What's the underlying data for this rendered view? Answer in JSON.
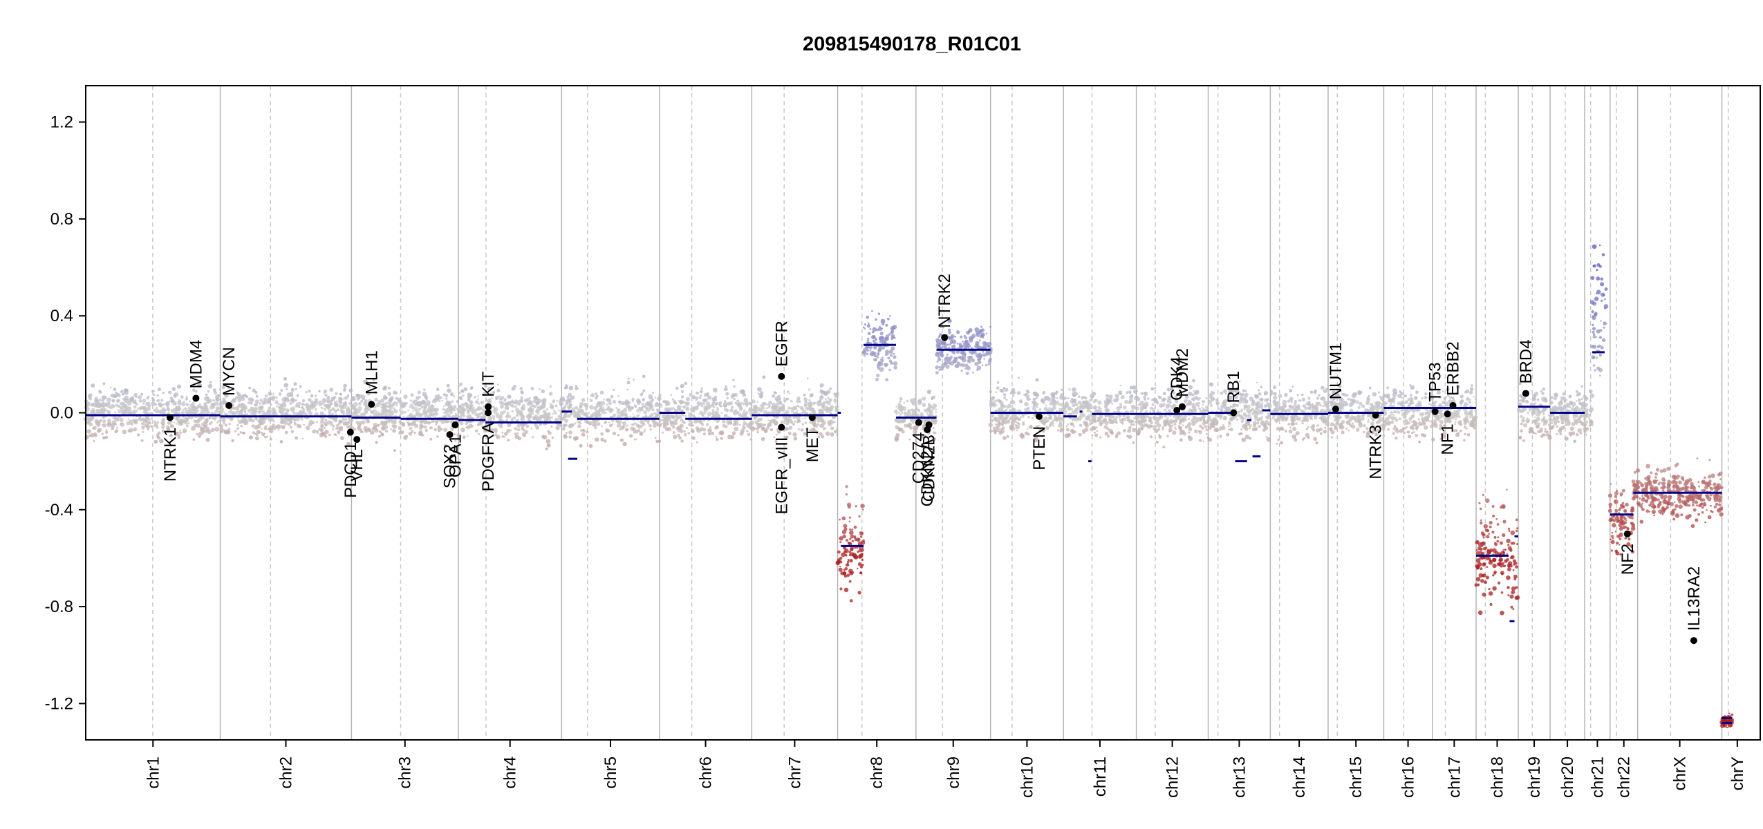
{
  "chart_data": {
    "type": "scatter",
    "title": "209815490178_R01C01",
    "xlabel": "",
    "ylabel": "",
    "ylim": [
      -1.35,
      1.35
    ],
    "yticks": [
      {
        "value": 1.2,
        "label": "1.2"
      },
      {
        "value": 0.8,
        "label": "0.8"
      },
      {
        "value": 0.4,
        "label": "0.4"
      },
      {
        "value": 0.0,
        "label": "0.0"
      },
      {
        "value": -0.4,
        "label": "-0.4"
      },
      {
        "value": -0.8,
        "label": "-0.8"
      },
      {
        "value": -1.2,
        "label": "-1.2"
      }
    ],
    "xlim": [
      0,
      3100
    ],
    "chromosomes": [
      {
        "name": "chr1",
        "start": 0,
        "end": 249,
        "centromere": 124
      },
      {
        "name": "chr2",
        "start": 249,
        "end": 492,
        "centromere": 342
      },
      {
        "name": "chr3",
        "start": 492,
        "end": 690,
        "centromere": 583
      },
      {
        "name": "chr4",
        "start": 690,
        "end": 881,
        "centromere": 741
      },
      {
        "name": "chr5",
        "start": 881,
        "end": 1062,
        "centromere": 929
      },
      {
        "name": "chr6",
        "start": 1062,
        "end": 1233,
        "centromere": 1122
      },
      {
        "name": "chr7",
        "start": 1233,
        "end": 1392,
        "centromere": 1293
      },
      {
        "name": "chr8",
        "start": 1392,
        "end": 1537,
        "centromere": 1437
      },
      {
        "name": "chr9",
        "start": 1537,
        "end": 1675,
        "centromere": 1586
      },
      {
        "name": "chr10",
        "start": 1675,
        "end": 1810,
        "centromere": 1715
      },
      {
        "name": "chr11",
        "start": 1810,
        "end": 1945,
        "centromere": 1863
      },
      {
        "name": "chr12",
        "start": 1945,
        "end": 2078,
        "centromere": 1980
      },
      {
        "name": "chr13",
        "start": 2078,
        "end": 2193,
        "centromere": 2096
      },
      {
        "name": "chr14",
        "start": 2193,
        "end": 2300,
        "centromere": 2210
      },
      {
        "name": "chr15",
        "start": 2300,
        "end": 2403,
        "centromere": 2317
      },
      {
        "name": "chr16",
        "start": 2403,
        "end": 2493,
        "centromere": 2440
      },
      {
        "name": "chr17",
        "start": 2493,
        "end": 2574,
        "centromere": 2517
      },
      {
        "name": "chr18",
        "start": 2574,
        "end": 2652,
        "centromere": 2591
      },
      {
        "name": "chr19",
        "start": 2652,
        "end": 2711,
        "centromere": 2678
      },
      {
        "name": "chr20",
        "start": 2711,
        "end": 2775,
        "centromere": 2739
      },
      {
        "name": "chr21",
        "start": 2775,
        "end": 2822,
        "centromere": 2786
      },
      {
        "name": "chr22",
        "start": 2822,
        "end": 2873,
        "centromere": 2834
      },
      {
        "name": "chrX",
        "start": 2873,
        "end": 3029,
        "centromere": 2934
      },
      {
        "name": "chrY",
        "start": 3029,
        "end": 3086,
        "centromere": 3041
      }
    ],
    "segments": [
      {
        "start": 0,
        "end": 249,
        "value": -0.01
      },
      {
        "start": 249,
        "end": 492,
        "value": -0.015
      },
      {
        "start": 492,
        "end": 583,
        "value": -0.02
      },
      {
        "start": 583,
        "end": 690,
        "value": -0.025
      },
      {
        "start": 690,
        "end": 740,
        "value": -0.03
      },
      {
        "start": 740,
        "end": 881,
        "value": -0.04
      },
      {
        "start": 881,
        "end": 900,
        "value": 0.005
      },
      {
        "start": 893,
        "end": 910,
        "value": -0.19
      },
      {
        "start": 910,
        "end": 1062,
        "value": -0.025
      },
      {
        "start": 1062,
        "end": 1110,
        "value": 0.0
      },
      {
        "start": 1110,
        "end": 1233,
        "value": -0.025
      },
      {
        "start": 1233,
        "end": 1392,
        "value": -0.01
      },
      {
        "start": 1392,
        "end": 1398,
        "value": 0.0
      },
      {
        "start": 1398,
        "end": 1440,
        "value": -0.55
      },
      {
        "start": 1440,
        "end": 1500,
        "value": 0.28
      },
      {
        "start": 1500,
        "end": 1537,
        "value": -0.02
      },
      {
        "start": 1537,
        "end": 1575,
        "value": -0.02
      },
      {
        "start": 1575,
        "end": 1675,
        "value": 0.26
      },
      {
        "start": 1675,
        "end": 1810,
        "value": 0.0
      },
      {
        "start": 1810,
        "end": 1835,
        "value": -0.015
      },
      {
        "start": 1840,
        "end": 1845,
        "value": 0.005
      },
      {
        "start": 1856,
        "end": 1862,
        "value": -0.2
      },
      {
        "start": 1863,
        "end": 1945,
        "value": -0.005
      },
      {
        "start": 1945,
        "end": 2078,
        "value": -0.005
      },
      {
        "start": 2078,
        "end": 2128,
        "value": 0.0
      },
      {
        "start": 2128,
        "end": 2150,
        "value": -0.2
      },
      {
        "start": 2150,
        "end": 2158,
        "value": -0.03
      },
      {
        "start": 2160,
        "end": 2175,
        "value": -0.18
      },
      {
        "start": 2178,
        "end": 2193,
        "value": 0.01
      },
      {
        "start": 2193,
        "end": 2300,
        "value": -0.005
      },
      {
        "start": 2300,
        "end": 2403,
        "value": 0.0
      },
      {
        "start": 2403,
        "end": 2493,
        "value": 0.02
      },
      {
        "start": 2493,
        "end": 2574,
        "value": 0.02
      },
      {
        "start": 2574,
        "end": 2634,
        "value": -0.59
      },
      {
        "start": 2636,
        "end": 2645,
        "value": -0.86
      },
      {
        "start": 2645,
        "end": 2652,
        "value": -0.51
      },
      {
        "start": 2652,
        "end": 2711,
        "value": 0.025
      },
      {
        "start": 2711,
        "end": 2775,
        "value": 0.0
      },
      {
        "start": 2789,
        "end": 2812,
        "value": 0.25
      },
      {
        "start": 2822,
        "end": 2865,
        "value": -0.42
      },
      {
        "start": 2865,
        "end": 3029,
        "value": -0.33
      },
      {
        "start": 3029,
        "end": 3048,
        "value": -1.26
      },
      {
        "start": 3029,
        "end": 3048,
        "value": -1.28
      }
    ],
    "density_regions": [
      {
        "start": 0,
        "end": 1392,
        "center": 0.0,
        "spread": 0.1
      },
      {
        "start": 1392,
        "end": 1440,
        "center": -0.55,
        "spread": 0.2
      },
      {
        "start": 1440,
        "end": 1500,
        "center": 0.28,
        "spread": 0.12
      },
      {
        "start": 1500,
        "end": 1575,
        "center": -0.02,
        "spread": 0.08
      },
      {
        "start": 1575,
        "end": 1675,
        "center": 0.26,
        "spread": 0.09
      },
      {
        "start": 1675,
        "end": 2574,
        "center": 0.0,
        "spread": 0.1
      },
      {
        "start": 2574,
        "end": 2652,
        "center": -0.59,
        "spread": 0.2
      },
      {
        "start": 2652,
        "end": 2789,
        "center": 0.0,
        "spread": 0.1
      },
      {
        "start": 2789,
        "end": 2815,
        "center": 0.4,
        "spread": 0.25
      },
      {
        "start": 2822,
        "end": 2865,
        "center": -0.45,
        "spread": 0.15
      },
      {
        "start": 2865,
        "end": 3029,
        "center": -0.33,
        "spread": 0.1
      },
      {
        "start": 3029,
        "end": 3048,
        "center": -1.27,
        "spread": 0.03
      }
    ],
    "genes": [
      {
        "name": "NTRK1",
        "pos": 156,
        "value": -0.02,
        "label_side": "below"
      },
      {
        "name": "MDM4",
        "pos": 204,
        "value": 0.06,
        "label_side": "above"
      },
      {
        "name": "MYCN",
        "pos": 265,
        "value": 0.03,
        "label_side": "above"
      },
      {
        "name": "PDCD1",
        "pos": 490,
        "value": -0.08,
        "label_side": "below"
      },
      {
        "name": "VHL",
        "pos": 502,
        "value": -0.11,
        "label_side": "below"
      },
      {
        "name": "MLH1",
        "pos": 529,
        "value": 0.035,
        "label_side": "above"
      },
      {
        "name": "SOX2",
        "pos": 674,
        "value": -0.09,
        "label_side": "below"
      },
      {
        "name": "OPA1",
        "pos": 684,
        "value": -0.05,
        "label_side": "below"
      },
      {
        "name": "KIT",
        "pos": 745,
        "value": 0.025,
        "label_side": "above"
      },
      {
        "name": "PDGFRA",
        "pos": 745,
        "value": 0.0,
        "label_side": "below"
      },
      {
        "name": "EGFR",
        "pos": 1288,
        "value": 0.15,
        "label_side": "above"
      },
      {
        "name": "EGFR_vIII",
        "pos": 1288,
        "value": -0.06,
        "label_side": "below"
      },
      {
        "name": "MET",
        "pos": 1345,
        "value": -0.02,
        "label_side": "below"
      },
      {
        "name": "CD274",
        "pos": 1542,
        "value": -0.04,
        "label_side": "below"
      },
      {
        "name": "CDKN2A",
        "pos": 1558,
        "value": -0.07,
        "label_side": "below"
      },
      {
        "name": "CDKN2B",
        "pos": 1561,
        "value": -0.05,
        "label_side": "below"
      },
      {
        "name": "NTRK2",
        "pos": 1590,
        "value": 0.31,
        "label_side": "above"
      },
      {
        "name": "PTEN",
        "pos": 1765,
        "value": -0.015,
        "label_side": "below"
      },
      {
        "name": "CDK4",
        "pos": 2020,
        "value": 0.01,
        "label_side": "above"
      },
      {
        "name": "MDM2",
        "pos": 2030,
        "value": 0.025,
        "label_side": "above"
      },
      {
        "name": "RB1",
        "pos": 2125,
        "value": 0.0,
        "label_side": "above"
      },
      {
        "name": "NUTM1",
        "pos": 2314,
        "value": 0.015,
        "label_side": "above"
      },
      {
        "name": "NTRK3",
        "pos": 2388,
        "value": -0.01,
        "label_side": "below"
      },
      {
        "name": "TP53",
        "pos": 2498,
        "value": 0.005,
        "label_side": "above"
      },
      {
        "name": "NF1",
        "pos": 2521,
        "value": -0.005,
        "label_side": "below"
      },
      {
        "name": "ERBB2",
        "pos": 2531,
        "value": 0.03,
        "label_side": "above"
      },
      {
        "name": "BRD4",
        "pos": 2666,
        "value": 0.08,
        "label_side": "above"
      },
      {
        "name": "NF2",
        "pos": 2854,
        "value": -0.5,
        "label_side": "below"
      },
      {
        "name": "IL13RA2",
        "pos": 2977,
        "value": -0.94,
        "label_side": "above"
      }
    ]
  }
}
